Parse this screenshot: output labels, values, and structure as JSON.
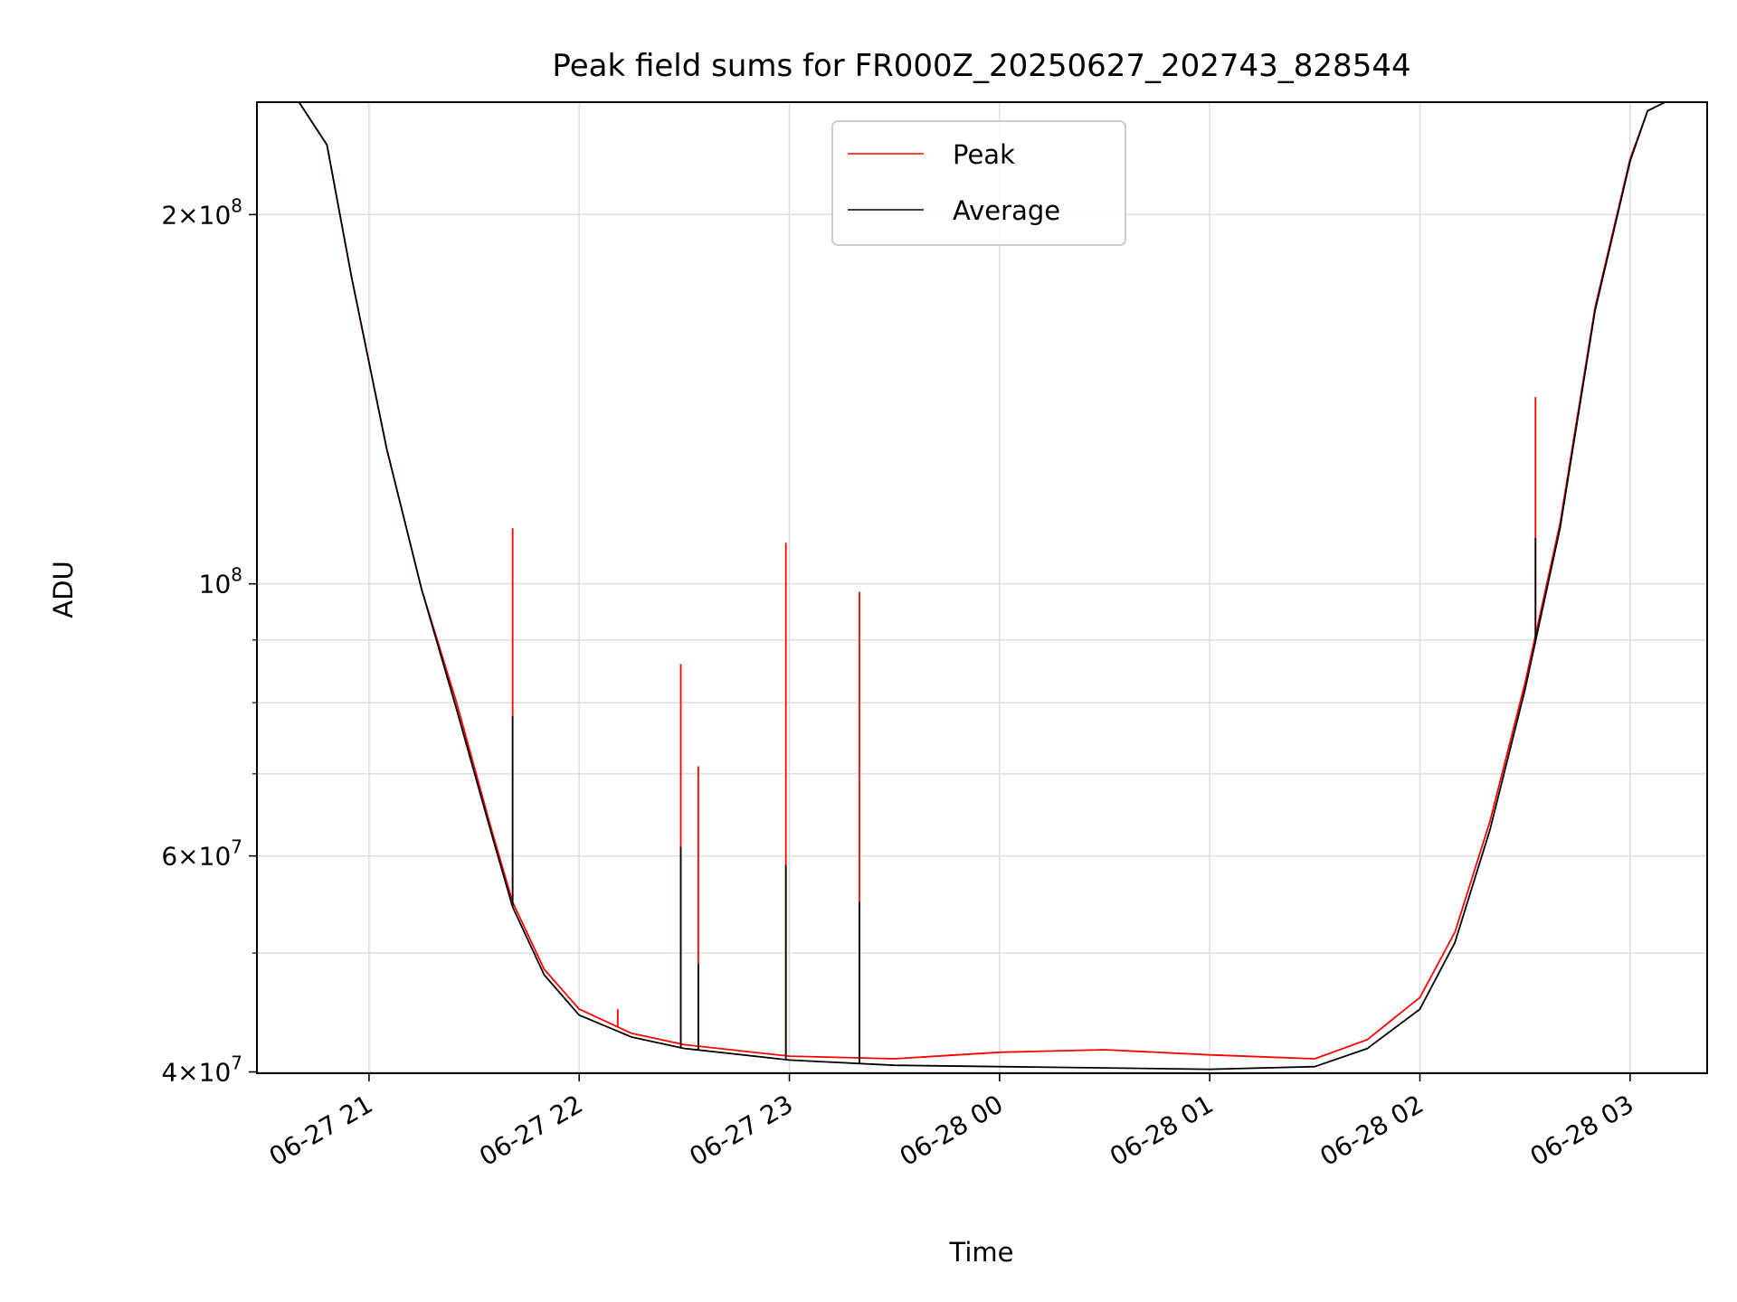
{
  "chart_data": {
    "type": "line",
    "title": "Peak field sums for FR000Z_20250627_202743_828544",
    "xlabel": "Time",
    "ylabel": "ADU",
    "y_scale": "log",
    "xlim": [
      "2025-06-27 20:28",
      "2025-06-28 03:22"
    ],
    "ylim": [
      39900000,
      247000000
    ],
    "x_ticks": [
      "06-27 21",
      "06-27 22",
      "06-27 23",
      "06-28 00",
      "06-28 01",
      "06-28 02",
      "06-28 03"
    ],
    "y_tick_labels": [
      {
        "value": 40000000,
        "mantissa": "4",
        "exp": "7"
      },
      {
        "value": 60000000,
        "mantissa": "6",
        "exp": "7"
      },
      {
        "value": 100000000,
        "mantissa": "",
        "exp": "8"
      },
      {
        "value": 200000000,
        "mantissa": "2",
        "exp": "8"
      }
    ],
    "grid": true,
    "legend_position": "top-center",
    "series": [
      {
        "name": "Peak",
        "color": "#ff0000",
        "points": [
          [
            "2025-06-27 20:28",
            247000000
          ],
          [
            "2025-06-27 20:40",
            247000000
          ],
          [
            "2025-06-27 20:48",
            228000000
          ],
          [
            "2025-06-27 20:55",
            178000000
          ],
          [
            "2025-06-27 21:05",
            129000000
          ],
          [
            "2025-06-27 21:15",
            99000000
          ],
          [
            "2025-06-27 21:25",
            80000000
          ],
          [
            "2025-06-27 21:35",
            63000000
          ],
          [
            "2025-06-27 21:41",
            55000000
          ],
          [
            "2025-06-27 21:50",
            48500000
          ],
          [
            "2025-06-27 22:00",
            45000000
          ],
          [
            "2025-06-27 22:15",
            43000000
          ],
          [
            "2025-06-27 22:30",
            42100000
          ],
          [
            "2025-06-27 23:00",
            41200000
          ],
          [
            "2025-06-27 23:30",
            41000000
          ],
          [
            "2025-06-28 00:00",
            41500000
          ],
          [
            "2025-06-28 00:30",
            41700000
          ],
          [
            "2025-06-28 01:00",
            41300000
          ],
          [
            "2025-06-28 01:30",
            41000000
          ],
          [
            "2025-06-28 01:45",
            42500000
          ],
          [
            "2025-06-28 02:00",
            46000000
          ],
          [
            "2025-06-28 02:10",
            52000000
          ],
          [
            "2025-06-28 02:20",
            64000000
          ],
          [
            "2025-06-28 02:30",
            83000000
          ],
          [
            "2025-06-28 02:40",
            112000000
          ],
          [
            "2025-06-28 02:50",
            168000000
          ],
          [
            "2025-06-28 03:00",
            222000000
          ],
          [
            "2025-06-28 03:05",
            243000000
          ],
          [
            "2025-06-28 03:10",
            247000000
          ],
          [
            "2025-06-28 03:22",
            247000000
          ]
        ],
        "spikes": [
          [
            "2025-06-27 21:41",
            111000000
          ],
          [
            "2025-06-27 22:11",
            45000000
          ],
          [
            "2025-06-27 22:29",
            86000000
          ],
          [
            "2025-06-27 22:34",
            71000000
          ],
          [
            "2025-06-27 22:59",
            108000000
          ],
          [
            "2025-06-27 23:20",
            98500000
          ],
          [
            "2025-06-28 02:33",
            142000000
          ]
        ]
      },
      {
        "name": "Average",
        "color": "#000000",
        "points": [
          [
            "2025-06-27 20:28",
            247000000
          ],
          [
            "2025-06-27 20:40",
            247000000
          ],
          [
            "2025-06-27 20:48",
            228000000
          ],
          [
            "2025-06-27 20:55",
            178000000
          ],
          [
            "2025-06-27 21:05",
            129000000
          ],
          [
            "2025-06-27 21:15",
            99000000
          ],
          [
            "2025-06-27 21:25",
            79000000
          ],
          [
            "2025-06-27 21:35",
            62500000
          ],
          [
            "2025-06-27 21:41",
            54500000
          ],
          [
            "2025-06-27 21:50",
            48000000
          ],
          [
            "2025-06-27 22:00",
            44500000
          ],
          [
            "2025-06-27 22:15",
            42700000
          ],
          [
            "2025-06-27 22:30",
            41800000
          ],
          [
            "2025-06-27 23:00",
            40900000
          ],
          [
            "2025-06-27 23:30",
            40500000
          ],
          [
            "2025-06-28 00:00",
            40400000
          ],
          [
            "2025-06-28 00:30",
            40300000
          ],
          [
            "2025-06-28 01:00",
            40200000
          ],
          [
            "2025-06-28 01:30",
            40400000
          ],
          [
            "2025-06-28 01:45",
            41800000
          ],
          [
            "2025-06-28 02:00",
            45000000
          ],
          [
            "2025-06-28 02:10",
            51000000
          ],
          [
            "2025-06-28 02:20",
            63000000
          ],
          [
            "2025-06-28 02:30",
            82000000
          ],
          [
            "2025-06-28 02:40",
            111000000
          ],
          [
            "2025-06-28 02:50",
            167000000
          ],
          [
            "2025-06-28 03:00",
            221000000
          ],
          [
            "2025-06-28 03:05",
            243000000
          ],
          [
            "2025-06-28 03:10",
            247000000
          ],
          [
            "2025-06-28 03:22",
            247000000
          ]
        ],
        "spikes": [
          [
            "2025-06-27 21:41",
            78000000
          ],
          [
            "2025-06-27 22:29",
            61000000
          ],
          [
            "2025-06-27 22:34",
            49000000
          ],
          [
            "2025-06-27 22:59",
            59000000
          ],
          [
            "2025-06-27 23:20",
            55000000
          ],
          [
            "2025-06-28 02:33",
            109000000
          ]
        ]
      }
    ]
  }
}
